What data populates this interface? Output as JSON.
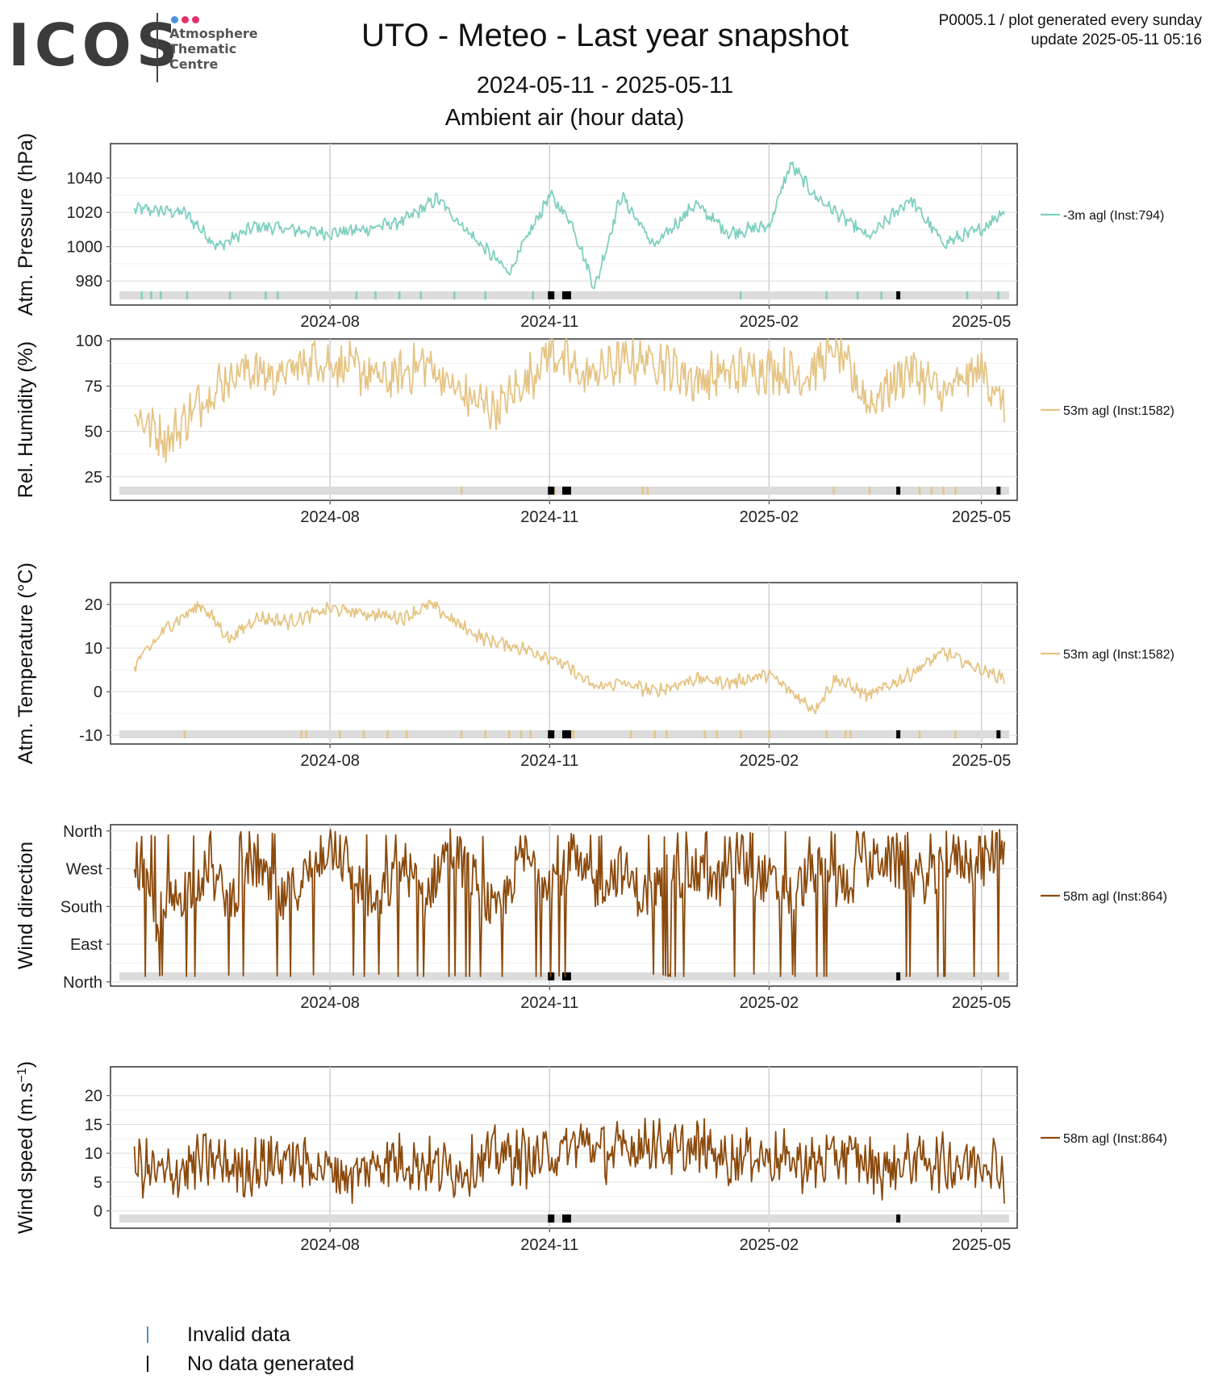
{
  "header": {
    "logo_text": "ICOS",
    "logo_subtitle": "Atmosphere\nThematic\nCentre",
    "logo_dot_colors": [
      "#4a90e2",
      "#e2336b",
      "#e2336b"
    ],
    "title": "UTO - Meteo - Last year snapshot",
    "date_range": "2024-05-11 - 2025-05-11",
    "subtitle": "Ambient air (hour data)",
    "meta_line1": "P0005.1 / plot generated every sunday",
    "meta_line2": "update  2025-05-11 05:16"
  },
  "legend_bottom": {
    "invalid_label": "Invalid data",
    "invalid_color": "#4a90c8",
    "nodata_label": "No data generated",
    "nodata_color": "#000000"
  },
  "chart_data": [
    {
      "type": "line",
      "ylabel": "Atm. Pressure (hPa)",
      "series_label": "-3m agl (Inst:794)",
      "color": "#7ecfc0",
      "yticks": [
        980,
        1000,
        1020,
        1040
      ],
      "ytick_labels": [
        "980",
        "1000",
        "1020",
        "1040"
      ],
      "ylim": [
        966,
        1060
      ],
      "x_dates": [
        "2024-05-11",
        "2024-06-01",
        "2024-06-15",
        "2024-07-01",
        "2024-07-15",
        "2024-08-01",
        "2024-08-15",
        "2024-09-01",
        "2024-09-15",
        "2024-10-01",
        "2024-10-15",
        "2024-11-01",
        "2024-11-10",
        "2024-11-20",
        "2024-12-01",
        "2024-12-15",
        "2025-01-01",
        "2025-01-15",
        "2025-02-01",
        "2025-02-10",
        "2025-02-20",
        "2025-03-01",
        "2025-03-15",
        "2025-04-01",
        "2025-04-15",
        "2025-05-01",
        "2025-05-11"
      ],
      "values": [
        1022,
        1020,
        1000,
        1012,
        1010,
        1008,
        1010,
        1015,
        1028,
        1004,
        985,
        1030,
        1015,
        976,
        1030,
        1000,
        1025,
        1008,
        1012,
        1048,
        1030,
        1020,
        1005,
        1028,
        1002,
        1010,
        1022
      ],
      "xticks": [
        "2024-08-01",
        "2024-11-01",
        "2025-02-01",
        "2025-05-01"
      ],
      "xtick_labels": [
        "2024-08",
        "2024-11",
        "2025-02",
        "2025-05"
      ],
      "invalid_dates": [
        "2024-05-14",
        "2024-05-18",
        "2024-05-22",
        "2024-06-02",
        "2024-06-20",
        "2024-07-05",
        "2024-07-10",
        "2024-08-12",
        "2024-08-20",
        "2024-08-30",
        "2024-09-08",
        "2024-09-22",
        "2024-10-05",
        "2024-10-25",
        "2025-01-20",
        "2025-02-25",
        "2025-03-10",
        "2025-03-20",
        "2025-04-25",
        "2025-05-08"
      ],
      "nodata_dates": [
        "2024-11-01",
        "2024-11-02",
        "2024-11-07",
        "2024-11-08",
        "2024-11-09",
        "2025-03-27"
      ]
    },
    {
      "type": "line",
      "ylabel": "Rel. Humidity (%)",
      "series_label": "53m agl (Inst:1582)",
      "color": "#e5c484",
      "yticks": [
        25,
        50,
        75,
        100
      ],
      "ytick_labels": [
        "25",
        "50",
        "75",
        "100"
      ],
      "ylim": [
        12,
        101
      ],
      "x_dates": [
        "2024-05-11",
        "2024-05-25",
        "2024-06-10",
        "2024-06-25",
        "2024-07-10",
        "2024-07-25",
        "2024-08-10",
        "2024-08-25",
        "2024-09-10",
        "2024-09-25",
        "2024-10-10",
        "2024-10-25",
        "2024-11-01",
        "2024-11-15",
        "2024-12-01",
        "2024-12-15",
        "2025-01-01",
        "2025-01-15",
        "2025-02-01",
        "2025-02-15",
        "2025-03-01",
        "2025-03-15",
        "2025-04-01",
        "2025-04-15",
        "2025-05-01",
        "2025-05-11"
      ],
      "values": [
        60,
        45,
        70,
        85,
        80,
        90,
        85,
        78,
        88,
        70,
        62,
        82,
        95,
        80,
        88,
        90,
        78,
        82,
        85,
        80,
        95,
        65,
        85,
        70,
        85,
        62
      ],
      "xticks": [
        "2024-08-01",
        "2024-11-01",
        "2025-02-01",
        "2025-05-01"
      ],
      "xtick_labels": [
        "2024-08",
        "2024-11",
        "2025-02",
        "2025-05"
      ],
      "invalid_dates": [
        "2024-09-25",
        "2024-11-03",
        "2024-12-10",
        "2024-12-12",
        "2025-02-28",
        "2025-03-15",
        "2025-04-05",
        "2025-04-10",
        "2025-04-15",
        "2025-04-20"
      ],
      "nodata_dates": [
        "2024-11-01",
        "2024-11-02",
        "2024-11-07",
        "2024-11-08",
        "2024-11-09",
        "2025-03-27",
        "2025-05-08"
      ]
    },
    {
      "type": "line",
      "ylabel": "Atm. Temperature (°C)",
      "series_label": "53m agl (Inst:1582)",
      "color": "#e5c484",
      "yticks": [
        -10,
        0,
        10,
        20
      ],
      "ytick_labels": [
        "-10",
        "0",
        "10",
        "20"
      ],
      "ylim": [
        -12,
        25
      ],
      "x_dates": [
        "2024-05-11",
        "2024-05-25",
        "2024-06-08",
        "2024-06-20",
        "2024-07-01",
        "2024-07-15",
        "2024-08-01",
        "2024-08-15",
        "2024-09-01",
        "2024-09-12",
        "2024-09-25",
        "2024-10-05",
        "2024-10-20",
        "2024-11-01",
        "2024-11-10",
        "2024-11-20",
        "2024-12-01",
        "2024-12-15",
        "2025-01-01",
        "2025-01-15",
        "2025-02-01",
        "2025-02-10",
        "2025-02-20",
        "2025-03-01",
        "2025-03-15",
        "2025-04-01",
        "2025-04-15",
        "2025-05-01",
        "2025-05-11"
      ],
      "values": [
        6,
        15,
        20,
        12,
        17,
        16,
        19,
        18,
        17,
        20,
        15,
        12,
        10,
        8,
        5,
        1,
        2,
        0,
        3,
        2,
        4,
        0,
        -4,
        3,
        -1,
        4,
        9,
        5,
        3
      ],
      "xticks": [
        "2024-08-01",
        "2024-11-01",
        "2025-02-01",
        "2025-05-01"
      ],
      "xtick_labels": [
        "2024-08",
        "2024-11",
        "2025-02",
        "2025-05"
      ],
      "invalid_dates": [
        "2024-06-01",
        "2024-07-20",
        "2024-07-22",
        "2024-08-05",
        "2024-08-15",
        "2024-08-25",
        "2024-09-02",
        "2024-09-25",
        "2024-10-05",
        "2024-10-15",
        "2024-10-20",
        "2024-10-24",
        "2024-11-10",
        "2024-11-11",
        "2024-12-05",
        "2024-12-15",
        "2024-12-20",
        "2025-01-05",
        "2025-01-10",
        "2025-01-20",
        "2025-02-01",
        "2025-02-25",
        "2025-03-05",
        "2025-03-07",
        "2025-04-05",
        "2025-04-20"
      ],
      "nodata_dates": [
        "2024-11-01",
        "2024-11-02",
        "2024-11-07",
        "2024-11-08",
        "2024-11-09",
        "2025-03-27",
        "2025-05-08"
      ]
    },
    {
      "type": "line",
      "ylabel": "Wind direction",
      "series_label": "58m agl (Inst:864)",
      "color": "#8b4a0c",
      "yticks": [
        0,
        90,
        180,
        270,
        360
      ],
      "ytick_labels": [
        "North",
        "East",
        "South",
        "West",
        "North"
      ],
      "ylim": [
        -10,
        375
      ],
      "x_dates": [
        "2024-05-11",
        "2024-05-20",
        "2024-06-01",
        "2024-06-10",
        "2024-06-20",
        "2024-07-01",
        "2024-07-10",
        "2024-07-20",
        "2024-08-01",
        "2024-08-10",
        "2024-08-20",
        "2024-09-01",
        "2024-09-10",
        "2024-09-20",
        "2024-10-01",
        "2024-10-10",
        "2024-10-20",
        "2024-11-01",
        "2024-11-10",
        "2024-11-20",
        "2024-12-01",
        "2024-12-10",
        "2024-12-20",
        "2025-01-01",
        "2025-01-10",
        "2025-01-20",
        "2025-02-01",
        "2025-02-10",
        "2025-02-20",
        "2025-03-01",
        "2025-03-10",
        "2025-03-20",
        "2025-04-01",
        "2025-04-10",
        "2025-04-20",
        "2025-05-01",
        "2025-05-11"
      ],
      "values": [
        300,
        150,
        220,
        260,
        200,
        280,
        180,
        240,
        330,
        260,
        180,
        280,
        200,
        330,
        240,
        150,
        300,
        250,
        280,
        230,
        270,
        200,
        250,
        260,
        230,
        280,
        240,
        200,
        270,
        230,
        250,
        300,
        260,
        240,
        300,
        280,
        340
      ],
      "xticks": [
        "2024-08-01",
        "2024-11-01",
        "2025-02-01",
        "2025-05-01"
      ],
      "xtick_labels": [
        "2024-08",
        "2024-11",
        "2025-02",
        "2025-05"
      ],
      "invalid_dates": [],
      "nodata_dates": [
        "2024-11-01",
        "2024-11-02",
        "2024-11-07",
        "2024-11-08",
        "2024-11-09",
        "2025-03-27"
      ]
    },
    {
      "type": "line",
      "ylabel": "Wind speed (m.s",
      "ylabel_sup": "−1",
      "ylabel_end": ")",
      "series_label": "58m agl (Inst:864)",
      "color": "#8b4a0c",
      "yticks": [
        0,
        5,
        10,
        15,
        20
      ],
      "ytick_labels": [
        "0",
        "5",
        "10",
        "15",
        "20"
      ],
      "ylim": [
        -3,
        25
      ],
      "x_dates": [
        "2024-05-11",
        "2024-05-25",
        "2024-06-10",
        "2024-06-25",
        "2024-07-10",
        "2024-07-25",
        "2024-08-10",
        "2024-08-25",
        "2024-09-10",
        "2024-09-25",
        "2024-10-10",
        "2024-10-25",
        "2024-11-05",
        "2024-11-15",
        "2024-11-25",
        "2024-12-05",
        "2024-12-15",
        "2024-12-25",
        "2025-01-05",
        "2025-01-15",
        "2025-01-25",
        "2025-02-05",
        "2025-02-20",
        "2025-03-05",
        "2025-03-20",
        "2025-04-05",
        "2025-04-20",
        "2025-05-05",
        "2025-05-11"
      ],
      "values": [
        8,
        6,
        9,
        7,
        9,
        8,
        6,
        9,
        8,
        7,
        10,
        9,
        10,
        12,
        10,
        11,
        12,
        10,
        11,
        9,
        10,
        9,
        8,
        10,
        7,
        9,
        8,
        9,
        6
      ],
      "xticks": [
        "2024-08-01",
        "2024-11-01",
        "2025-02-01",
        "2025-05-01"
      ],
      "xtick_labels": [
        "2024-08",
        "2024-11",
        "2025-02",
        "2025-05"
      ],
      "invalid_dates": [],
      "nodata_dates": [
        "2024-11-01",
        "2024-11-02",
        "2024-11-07",
        "2024-11-08",
        "2024-11-09",
        "2025-03-27"
      ]
    }
  ]
}
